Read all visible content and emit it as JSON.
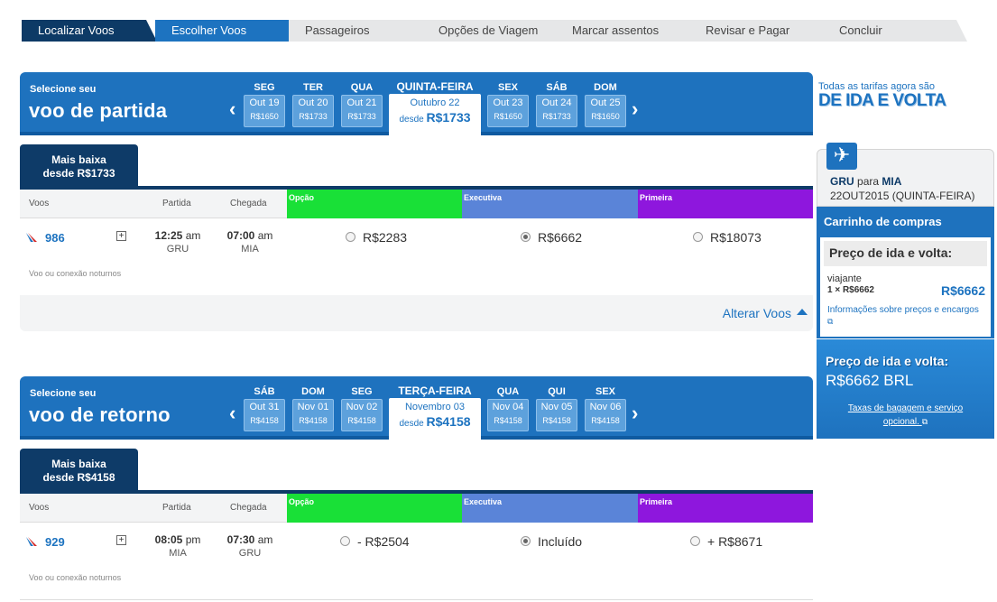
{
  "steps": [
    "Localizar Voos",
    "Escolher Voos",
    "Passageiros",
    "Opções de Viagem",
    "Marcar assentos",
    "Revisar e Pagar",
    "Concluir"
  ],
  "outbound": {
    "select_label": "Selecione seu",
    "title": "voo de partida",
    "prev_arrow": "‹",
    "next_arrow": "›",
    "days": [
      {
        "name": "SEG",
        "date": "Out 19",
        "price": "R$1650"
      },
      {
        "name": "TER",
        "date": "Out 20",
        "price": "R$1733"
      },
      {
        "name": "QUA",
        "date": "Out 21",
        "price": "R$1733"
      },
      {
        "name": "SEX",
        "date": "Out 23",
        "price": "R$1650"
      },
      {
        "name": "SÁB",
        "date": "Out 24",
        "price": "R$1733"
      },
      {
        "name": "DOM",
        "date": "Out 25",
        "price": "R$1650"
      }
    ],
    "selected_day": {
      "name": "QUINTA-FEIRA",
      "date": "Outubro 22",
      "price_prefix": "desde",
      "price": "R$1733"
    },
    "lowest_tab": {
      "line1": "Mais baixa",
      "line2": "desde R$1733"
    },
    "flight": {
      "number": "986",
      "expand": "+",
      "depart_time": "12:25",
      "depart_ampm": "am",
      "depart_airport": "GRU",
      "arrive_time": "07:00",
      "arrive_ampm": "am",
      "arrive_airport": "MIA",
      "option_price": "R$2283",
      "executive_price": "R$6662",
      "first_price": "R$18073",
      "note": "Voo ou conexão noturnos"
    },
    "change_flights": "Alterar Voos"
  },
  "columns": {
    "flights": "Voos",
    "depart": "Partida",
    "arrive": "Chegada",
    "option": "Opção",
    "executive": "Executiva",
    "first": "Primeira"
  },
  "return": {
    "select_label": "Selecione seu",
    "title": "voo de retorno",
    "prev_arrow": "‹",
    "next_arrow": "›",
    "days": [
      {
        "name": "SÁB",
        "date": "Out 31",
        "price": "R$4158"
      },
      {
        "name": "DOM",
        "date": "Nov 01",
        "price": "R$4158"
      },
      {
        "name": "SEG",
        "date": "Nov 02",
        "price": "R$4158"
      },
      {
        "name": "QUA",
        "date": "Nov 04",
        "price": "R$4158"
      },
      {
        "name": "QUI",
        "date": "Nov 05",
        "price": "R$4158"
      },
      {
        "name": "SEX",
        "date": "Nov 06",
        "price": "R$4158"
      }
    ],
    "selected_day": {
      "name": "TERÇA-FEIRA",
      "date": "Novembro 03",
      "price_prefix": "desde",
      "price": "R$4158"
    },
    "lowest_tab": {
      "line1": "Mais baixa",
      "line2": "desde R$4158"
    },
    "flight": {
      "number": "929",
      "expand": "+",
      "depart_time": "08:05",
      "depart_ampm": "pm",
      "depart_airport": "MIA",
      "arrive_time": "07:30",
      "arrive_ampm": "am",
      "arrive_airport": "GRU",
      "option_price": "- R$2504",
      "executive_price": "Incluído",
      "first_price": "+ R$8671",
      "note": "Voo ou conexão noturnos"
    }
  },
  "promo": {
    "line1": "Todas as tarifas agora são",
    "line2": "DE IDA E VOLTA"
  },
  "trip": {
    "plane_icon": "✈",
    "from": "GRU",
    "to_word": "para",
    "to": "MIA",
    "date": "22OUT2015 (QUINTA-FEIRA)"
  },
  "cart": {
    "title": "Carrinho de compras",
    "price_heading": "Preço de ida e volta:",
    "traveler": "viajante",
    "traveler_line": "1 × R$6662",
    "traveler_total": "R$6662",
    "info": "Informações sobre preços e encargos",
    "ext_icon": "⧉"
  },
  "total": {
    "label": "Preço de ida e volta:",
    "amount": "R$6662 BRL",
    "fees": "Taxas de bagagem e serviço opcional."
  },
  "colors": {
    "brand": "#1e72be",
    "navy": "#0e3b68",
    "option": "#19e037",
    "executive": "#5a84d8",
    "first": "#8e17dd"
  }
}
